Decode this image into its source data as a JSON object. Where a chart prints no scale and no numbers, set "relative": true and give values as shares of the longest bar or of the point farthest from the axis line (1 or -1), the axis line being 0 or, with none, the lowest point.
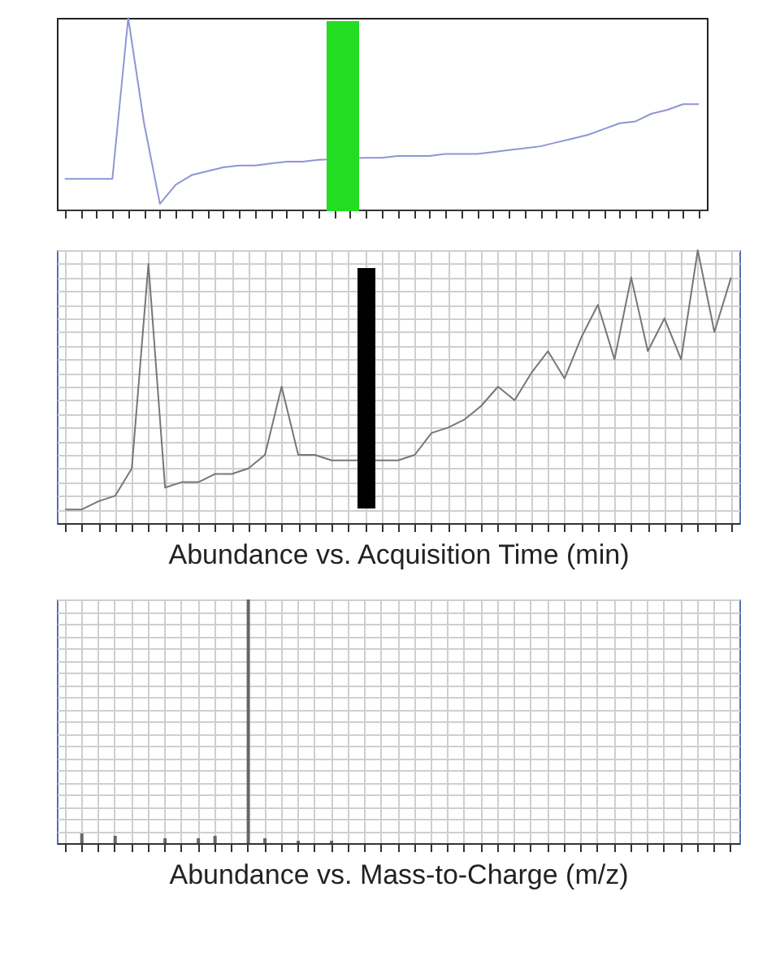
{
  "chart_data": [
    {
      "type": "line",
      "relative": true,
      "categories": [
        null,
        null,
        null,
        null,
        null,
        null,
        null,
        null,
        null,
        null,
        null,
        null,
        null,
        null,
        null,
        null,
        null,
        null,
        null,
        null,
        null,
        null,
        null,
        null,
        null,
        null,
        null,
        null,
        null,
        null,
        null,
        null,
        null,
        null,
        null,
        null,
        null,
        null,
        null,
        null,
        null
      ],
      "grid": false,
      "series": [
        {
          "color": "#8f95d6",
          "values": [
            0.16,
            0.16,
            0.16,
            0.16,
            1.0,
            0.45,
            0.03,
            0.13,
            0.18,
            0.2,
            0.22,
            0.23,
            0.23,
            0.24,
            0.25,
            0.25,
            0.26,
            null,
            null,
            0.27,
            0.27,
            0.28,
            0.28,
            0.28,
            0.29,
            0.29,
            0.29,
            0.3,
            0.31,
            0.32,
            0.33,
            0.35,
            0.37,
            0.39,
            0.42,
            0.45,
            0.46,
            0.5,
            0.52,
            0.55,
            0.55
          ]
        }
      ]
    },
    {
      "type": "line",
      "relative": true,
      "xlabel": "Abundance vs. Acquisition Time (min)",
      "categories": [
        null,
        null,
        null,
        null,
        null,
        null,
        null,
        null,
        null,
        null,
        null,
        null,
        null,
        null,
        null,
        null,
        null,
        null,
        null,
        null,
        null,
        null,
        null,
        null,
        null,
        null,
        null,
        null,
        null,
        null,
        null,
        null,
        null,
        null,
        null,
        null,
        null,
        null,
        null,
        null,
        null
      ],
      "grid": true,
      "series": [
        {
          "color": "#777777",
          "values": [
            0.05,
            0.05,
            0.08,
            0.1,
            0.2,
            0.95,
            0.13,
            0.15,
            0.15,
            0.18,
            0.18,
            0.2,
            0.25,
            0.5,
            0.25,
            0.25,
            0.23,
            0.23,
            null,
            0.23,
            0.23,
            0.25,
            0.33,
            0.35,
            0.38,
            0.43,
            0.5,
            0.45,
            0.55,
            0.63,
            0.53,
            0.68,
            0.8,
            0.6,
            0.9,
            0.63,
            0.75,
            0.6,
            1.0,
            0.7,
            0.9
          ]
        }
      ]
    },
    {
      "type": "bar",
      "relative": true,
      "xlabel": "Abundance vs. Mass-to-Charge (m/z)",
      "categories": [
        null,
        null,
        null,
        null,
        null,
        null,
        null,
        null,
        null,
        null,
        null,
        null,
        null,
        null,
        null,
        null,
        null,
        null,
        null,
        null,
        null,
        null,
        null,
        null,
        null,
        null,
        null,
        null,
        null,
        null,
        null,
        null,
        null,
        null,
        null,
        null,
        null,
        null,
        null,
        null,
        null
      ],
      "grid": true,
      "series": [
        {
          "color": "#666666",
          "values": [
            0,
            0.04,
            0,
            0.03,
            0,
            0,
            0.02,
            0,
            0.02,
            0.03,
            0,
            1.0,
            0.02,
            0,
            0.01,
            0,
            0.01,
            0,
            0,
            0,
            0,
            0,
            0,
            0,
            0,
            0,
            0,
            0,
            0,
            0,
            0,
            0,
            0,
            0,
            0,
            0,
            0,
            0,
            0,
            0,
            0
          ]
        }
      ]
    }
  ]
}
